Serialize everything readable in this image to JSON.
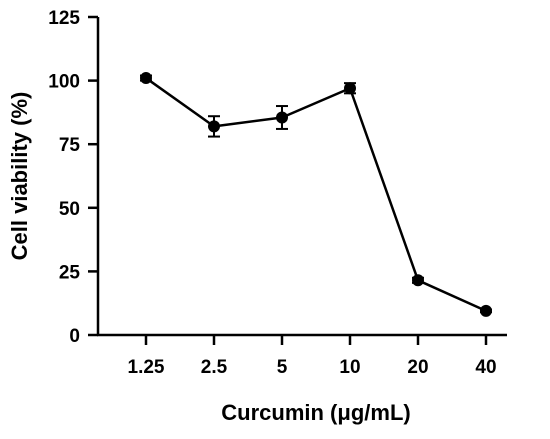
{
  "chart_data": {
    "type": "line",
    "title": "",
    "xlabel": "Curcumin (μg/mL)",
    "ylabel": "Cell viability (%)",
    "categories": [
      "1.25",
      "2.5",
      "5",
      "10",
      "20",
      "40"
    ],
    "ylim": [
      0,
      125
    ],
    "yticks": [
      "0",
      "25",
      "50",
      "75",
      "100",
      "125"
    ],
    "grid": false,
    "legend": "none",
    "series": [
      {
        "values": [
          101,
          82,
          85.5,
          97,
          21.5,
          9.5
        ],
        "errors": [
          1,
          4,
          4.5,
          2,
          1,
          0.5
        ],
        "color": "#000000"
      }
    ]
  }
}
